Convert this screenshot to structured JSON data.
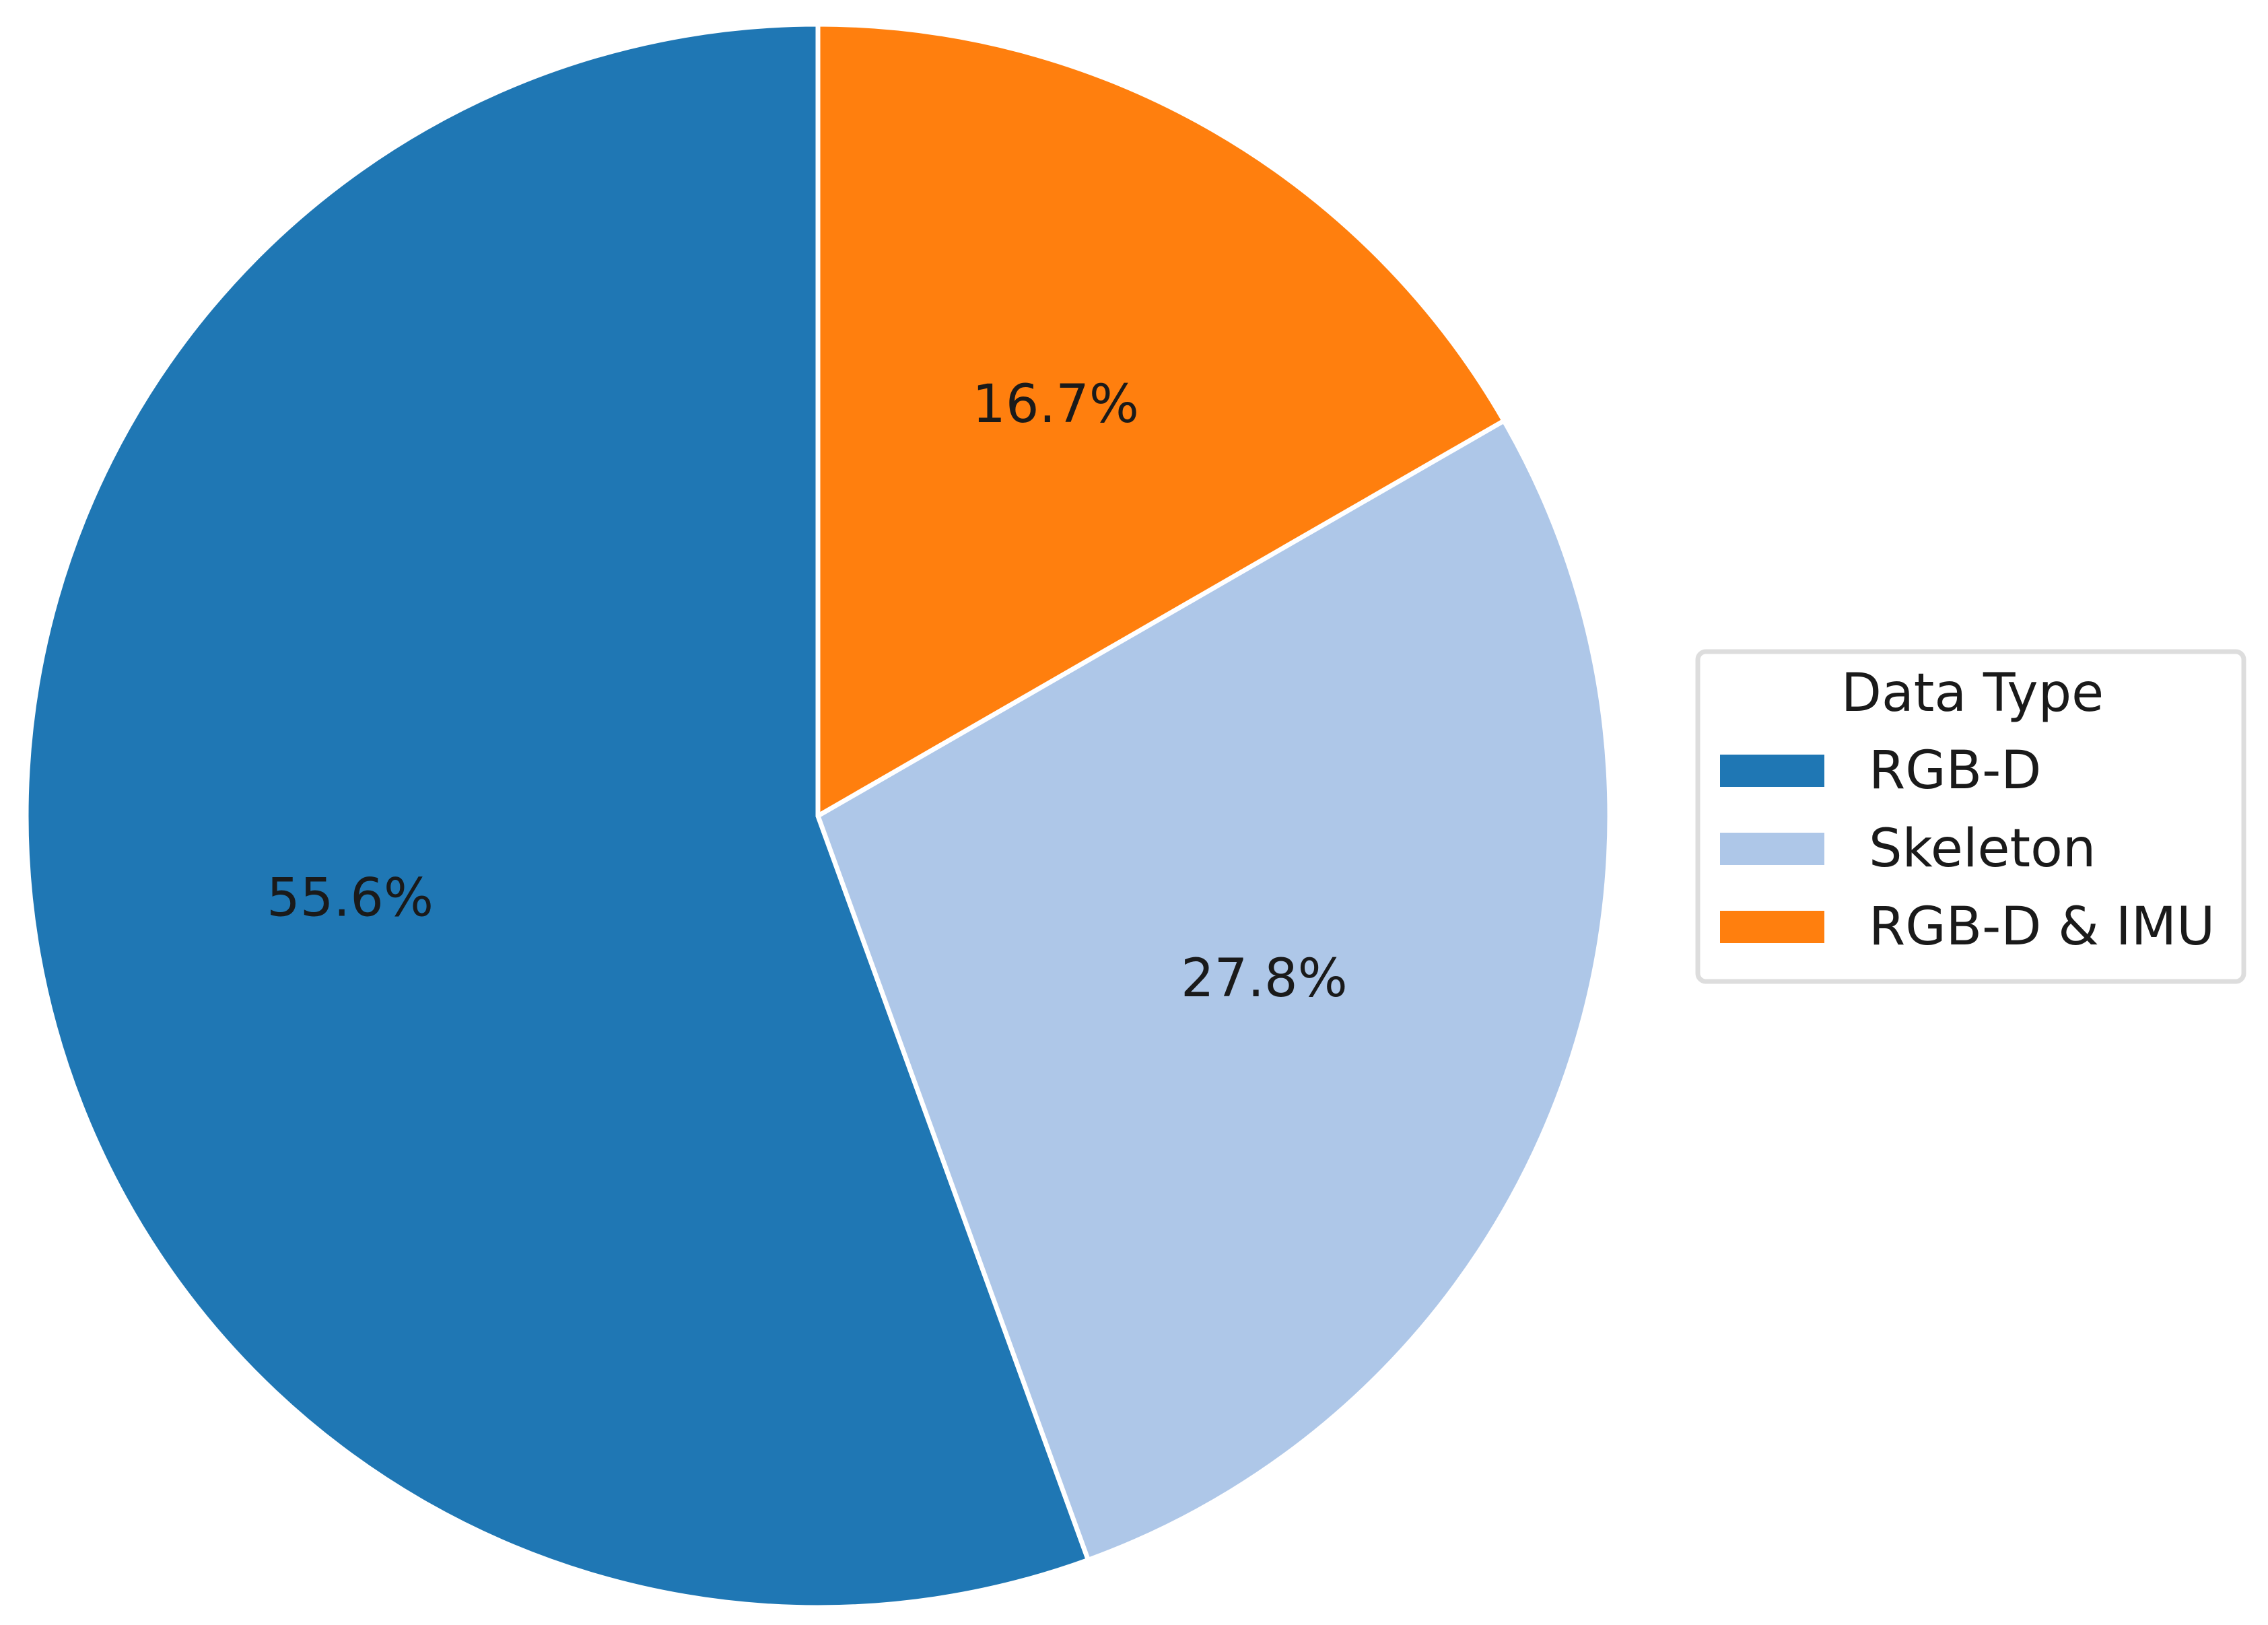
{
  "chart_data": {
    "type": "pie",
    "categories": [
      "RGB-D",
      "Skeleton",
      "RGB-D & IMU"
    ],
    "values": [
      55.6,
      27.8,
      16.7
    ],
    "labels": [
      "55.6%",
      "27.8%",
      "16.7%"
    ],
    "colors": [
      "#1f77b4",
      "#aec7e8",
      "#ff7f0e"
    ],
    "start_angle_deg": 90,
    "direction": "counterclockwise",
    "legend": {
      "title": "Data Type",
      "placement": "right"
    }
  }
}
